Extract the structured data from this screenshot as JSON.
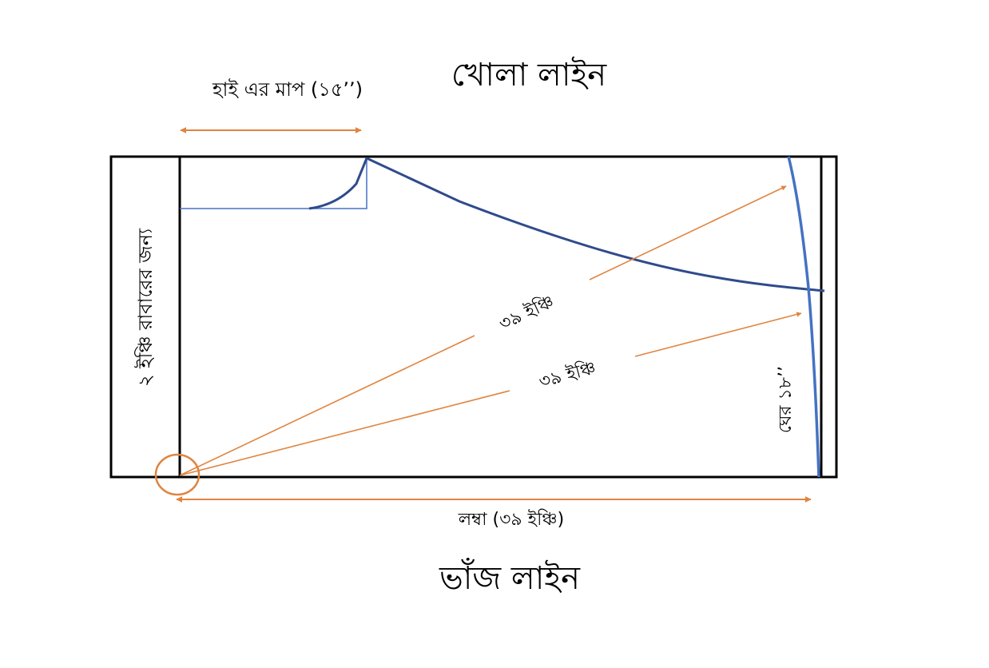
{
  "pattern": {
    "top_title": "খোলা লাইন",
    "bottom_title": "ভাঁজ লাইন",
    "hip_measure_label": "হাই এর মাপ (১৫’’)",
    "rubber_allowance_label": "২ ইঞ্চি রাবারের জন্য",
    "diagonal_label_upper": "৩৯ ইঞ্চি",
    "diagonal_label_lower": "৩৯ ইঞ্চি",
    "hem_label": "ঘের ১৮’’",
    "length_label": "লম্বা (৩৯ ইঞ্চি)"
  },
  "colors": {
    "outline": "#000000",
    "curve": "#2f4b8c",
    "curve_light": "#4472c4",
    "arrow": "#e0843f"
  }
}
